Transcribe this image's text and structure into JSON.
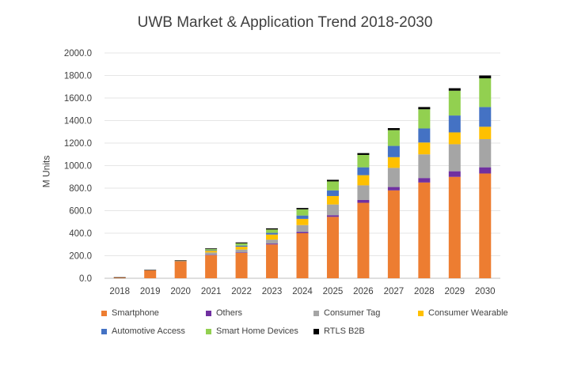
{
  "chart_data": {
    "type": "bar",
    "stacked": true,
    "title": "UWB Market & Application Trend 2018-2030",
    "xlabel": "",
    "ylabel": "M Units",
    "ylim": [
      0,
      2000
    ],
    "yticks": [
      "0.0",
      "200.0",
      "400.0",
      "600.0",
      "800.0",
      "1000.0",
      "1200.0",
      "1400.0",
      "1600.0",
      "1800.0",
      "2000.0"
    ],
    "categories": [
      "2018",
      "2019",
      "2020",
      "2021",
      "2022",
      "2023",
      "2024",
      "2025",
      "2026",
      "2027",
      "2028",
      "2029",
      "2030"
    ],
    "legend_position": "bottom",
    "series": [
      {
        "name": "Smartphone",
        "color": "#ED7D31",
        "values": [
          8,
          72,
          150,
          205,
          225,
          300,
          400,
          545,
          670,
          780,
          850,
          900,
          930
        ]
      },
      {
        "name": "Others",
        "color": "#7030A0",
        "values": [
          0,
          0,
          2,
          4,
          5,
          8,
          12,
          15,
          25,
          30,
          40,
          50,
          55
        ]
      },
      {
        "name": "Consumer Tag",
        "color": "#A5A5A5",
        "values": [
          0,
          0,
          2,
          20,
          25,
          35,
          60,
          95,
          130,
          170,
          210,
          240,
          250
        ]
      },
      {
        "name": "Consumer Wearable",
        "color": "#FFC000",
        "values": [
          0,
          0,
          2,
          15,
          25,
          45,
          55,
          75,
          90,
          95,
          105,
          105,
          110
        ]
      },
      {
        "name": "Automotive Access",
        "color": "#4472C4",
        "values": [
          0,
          0,
          0,
          5,
          10,
          15,
          30,
          50,
          70,
          100,
          125,
          150,
          175
        ]
      },
      {
        "name": "Smart Home Devices",
        "color": "#92D050",
        "values": [
          0,
          0,
          0,
          10,
          20,
          30,
          55,
          80,
          110,
          140,
          170,
          220,
          255
        ]
      },
      {
        "name": "RTLS B2B",
        "color": "#000000",
        "values": [
          1,
          2,
          4,
          6,
          8,
          10,
          12,
          14,
          16,
          18,
          20,
          22,
          25
        ]
      }
    ]
  }
}
